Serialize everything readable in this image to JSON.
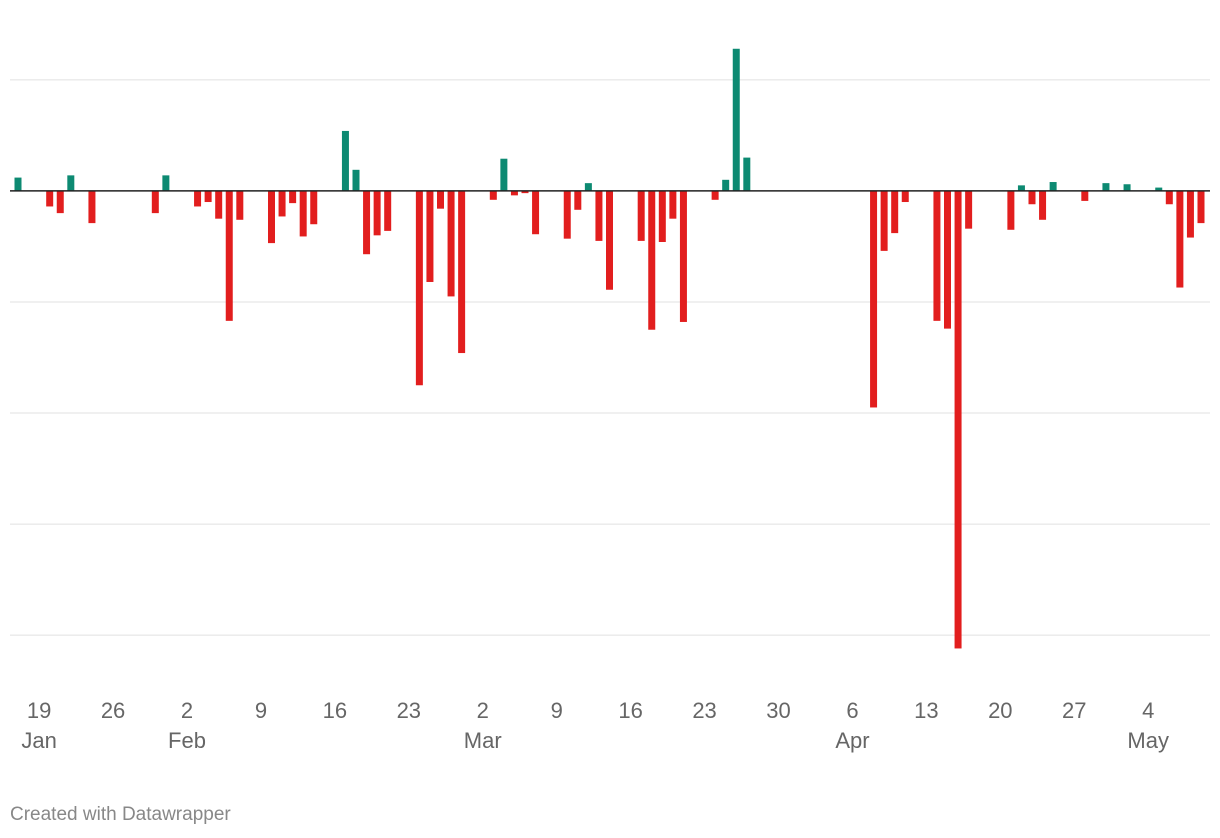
{
  "chart_data": {
    "type": "bar",
    "categories": [
      "Jan 17",
      "Jan 18",
      "Jan 19",
      "Jan 20",
      "Jan 21",
      "Jan 22",
      "Jan 23",
      "Jan 24",
      "Jan 25",
      "Jan 26",
      "Jan 27",
      "Jan 28",
      "Jan 29",
      "Jan 30",
      "Jan 31",
      "Feb 1",
      "Feb 2",
      "Feb 3",
      "Feb 4",
      "Feb 5",
      "Feb 6",
      "Feb 7",
      "Feb 8",
      "Feb 9",
      "Feb 10",
      "Feb 11",
      "Feb 12",
      "Feb 13",
      "Feb 14",
      "Feb 15",
      "Feb 16",
      "Feb 17",
      "Feb 18",
      "Feb 19",
      "Feb 20",
      "Feb 21",
      "Feb 22",
      "Feb 23",
      "Feb 24",
      "Feb 25",
      "Feb 26",
      "Feb 27",
      "Feb 28",
      "Mar 1",
      "Mar 2",
      "Mar 3",
      "Mar 4",
      "Mar 5",
      "Mar 6",
      "Mar 7",
      "Mar 8",
      "Mar 9",
      "Mar 10",
      "Mar 11",
      "Mar 12",
      "Mar 13",
      "Mar 14",
      "Mar 15",
      "Mar 16",
      "Mar 17",
      "Mar 18",
      "Mar 19",
      "Mar 20",
      "Mar 21",
      "Mar 22",
      "Mar 23",
      "Mar 24",
      "Mar 25",
      "Mar 26",
      "Mar 27",
      "Mar 28",
      "Mar 29",
      "Mar 30",
      "Mar 31",
      "Apr 1",
      "Apr 2",
      "Apr 3",
      "Apr 4",
      "Apr 5",
      "Apr 6",
      "Apr 7",
      "Apr 8",
      "Apr 9",
      "Apr 10",
      "Apr 11",
      "Apr 12",
      "Apr 13",
      "Apr 14",
      "Apr 15",
      "Apr 16",
      "Apr 17",
      "Apr 18",
      "Apr 19",
      "Apr 20",
      "Apr 21",
      "Apr 22",
      "Apr 23",
      "Apr 24",
      "Apr 25",
      "Apr 26",
      "Apr 27",
      "Apr 28",
      "Apr 29",
      "Apr 30",
      "May 1",
      "May 2",
      "May 3",
      "May 4",
      "May 5",
      "May 6",
      "May 7",
      "May 8",
      "May 9"
    ],
    "values": [
      0.12,
      0,
      0,
      -0.14,
      -0.2,
      0.14,
      0,
      -0.29,
      0,
      0,
      0,
      0,
      0,
      -0.2,
      0.14,
      0,
      0,
      -0.14,
      -0.1,
      -0.25,
      -1.17,
      -0.26,
      0,
      0,
      -0.47,
      -0.23,
      -0.11,
      -0.41,
      -0.3,
      0,
      0,
      0.54,
      0.19,
      -0.57,
      -0.4,
      -0.36,
      0,
      0,
      -1.75,
      -0.82,
      -0.16,
      -0.95,
      -1.46,
      0,
      0,
      -0.08,
      0.29,
      -0.04,
      -0.02,
      -0.39,
      0,
      0,
      -0.43,
      -0.17,
      0.07,
      -0.45,
      -0.89,
      0,
      0,
      -0.45,
      -1.25,
      -0.46,
      -0.25,
      -1.18,
      0,
      0,
      -0.08,
      0.1,
      1.28,
      0.3,
      0,
      0,
      0,
      0,
      0,
      0,
      0,
      0,
      0,
      0,
      0,
      -1.95,
      -0.54,
      -0.38,
      -0.1,
      0,
      0,
      -1.17,
      -1.24,
      -4.12,
      -0.34,
      0,
      0,
      0,
      -0.35,
      0.05,
      -0.12,
      -0.26,
      0.08,
      0,
      0,
      -0.09,
      0,
      0.07,
      0,
      0.06,
      0,
      0,
      0.03,
      -0.12,
      -0.87,
      -0.42,
      -0.29
    ],
    "positive_color": "#0d8a72",
    "negative_color": "#e21e1e",
    "ylim": [
      -4.35,
      1.53
    ],
    "yticks": [
      -4,
      -3,
      -2,
      -1,
      0,
      1
    ],
    "grid": true,
    "xticks": [
      {
        "value": "Jan 19",
        "label": "19"
      },
      {
        "value": "Jan 26",
        "label": "26"
      },
      {
        "value": "Feb 2",
        "label": "2"
      },
      {
        "value": "Feb 9",
        "label": "9"
      },
      {
        "value": "Feb 16",
        "label": "16"
      },
      {
        "value": "Feb 23",
        "label": "23"
      },
      {
        "value": "Mar 2",
        "label": "2"
      },
      {
        "value": "Mar 9",
        "label": "9"
      },
      {
        "value": "Mar 16",
        "label": "16"
      },
      {
        "value": "Mar 23",
        "label": "23"
      },
      {
        "value": "Mar 30",
        "label": "30"
      },
      {
        "value": "Apr 6",
        "label": "6"
      },
      {
        "value": "Apr 13",
        "label": "13"
      },
      {
        "value": "Apr 20",
        "label": "20"
      },
      {
        "value": "Apr 27",
        "label": "27"
      },
      {
        "value": "May 4",
        "label": "4"
      }
    ],
    "month_labels": [
      {
        "value": "Jan 19",
        "label": "Jan"
      },
      {
        "value": "Feb 2",
        "label": "Feb"
      },
      {
        "value": "Mar 2",
        "label": "Mar"
      },
      {
        "value": "Apr 6",
        "label": "Apr"
      },
      {
        "value": "May 4",
        "label": "May"
      }
    ],
    "credit": "Created with Datawrapper"
  }
}
